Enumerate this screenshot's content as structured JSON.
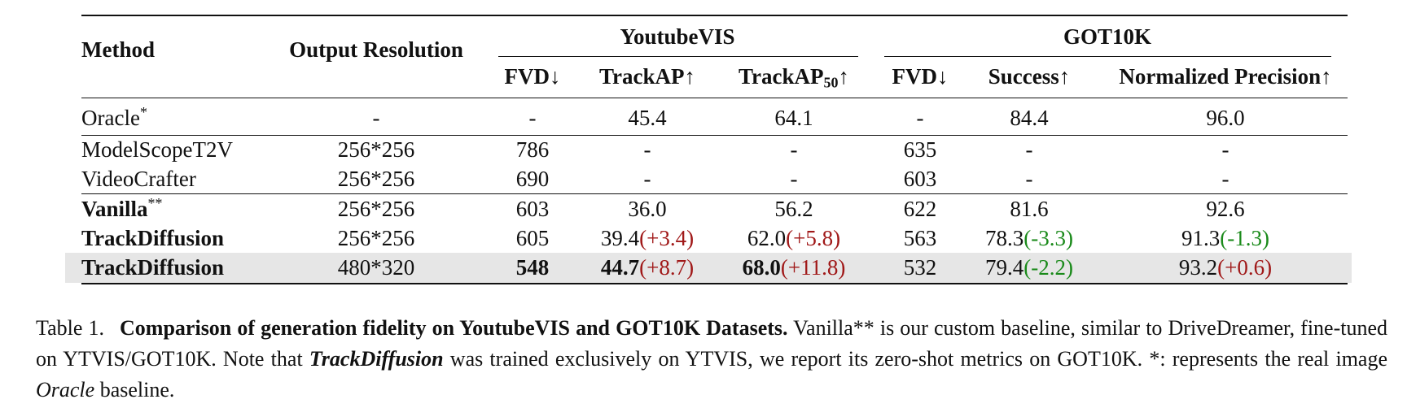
{
  "table": {
    "headers": {
      "method": "Method",
      "resolution": "Output Resolution",
      "youtubevis": "YoutubeVIS",
      "got10k": "GOT10K",
      "fvd": "FVD↓",
      "trackap": "TrackAP↑",
      "trackap50_base": "TrackAP",
      "trackap50_sub": "50",
      "trackap50_arrow": "↑",
      "fvd2": "FVD↓",
      "success": "Success↑",
      "norm_prec": "Normalized Precision↑"
    },
    "rows": [
      {
        "method": "Oracle",
        "method_sup": "*",
        "res": "-",
        "yt_fvd": "-",
        "yt_trackap": "45.4",
        "yt_trackap50": "64.1",
        "got_fvd": "-",
        "got_success": "84.4",
        "got_np": "96.0"
      },
      {
        "method": "ModelScopeT2V",
        "res": "256*256",
        "yt_fvd": "786",
        "yt_trackap": "-",
        "yt_trackap50": "-",
        "got_fvd": "635",
        "got_success": "-",
        "got_np": "-"
      },
      {
        "method": "VideoCrafter",
        "res": "256*256",
        "yt_fvd": "690",
        "yt_trackap": "-",
        "yt_trackap50": "-",
        "got_fvd": "603",
        "got_success": "-",
        "got_np": "-"
      },
      {
        "method": "Vanilla",
        "method_sup": "**",
        "res": "256*256",
        "yt_fvd": "603",
        "yt_trackap": "36.0",
        "yt_trackap50": "56.2",
        "got_fvd": "622",
        "got_success": "81.6",
        "got_np": "92.6"
      },
      {
        "method": "TrackDiffusion",
        "res": "256*256",
        "yt_fvd": "605",
        "yt_trackap": "39.4",
        "yt_trackap_delta": "(+3.4)",
        "yt_trackap50": "62.0",
        "yt_trackap50_delta": "(+5.8)",
        "got_fvd": "563",
        "got_success": "78.3",
        "got_success_delta": "(-3.3)",
        "got_np": "91.3",
        "got_np_delta": "(-1.3)"
      },
      {
        "method": "TrackDiffusion",
        "res": "480*320",
        "yt_fvd": "548",
        "yt_trackap": "44.7",
        "yt_trackap_delta": "(+8.7)",
        "yt_trackap50": "68.0",
        "yt_trackap50_delta": "(+11.8)",
        "got_fvd": "532",
        "got_success": "79.4",
        "got_success_delta": "(-2.2)",
        "got_np": "93.2",
        "got_np_delta": "(+0.6)"
      }
    ],
    "colors": {
      "positive_delta": "#a01818",
      "negative_delta": "#1a8a1a",
      "highlight_row": "#e6e6e6"
    }
  },
  "caption": {
    "label": "Table 1.",
    "title": "Comparison of generation fidelity on YoutubeVIS and GOT10K Datasets.",
    "text1": "Vanilla** is our custom baseline, similar to DriveDreamer, fine-tuned on YTVIS/GOT10K. Note that",
    "emph": "TrackDiffusion",
    "text2": "was trained exclusively on YTVIS, we report its zero-shot metrics on GOT10K. *: represents the real image",
    "oracle": "Oracle",
    "text3": "baseline."
  }
}
